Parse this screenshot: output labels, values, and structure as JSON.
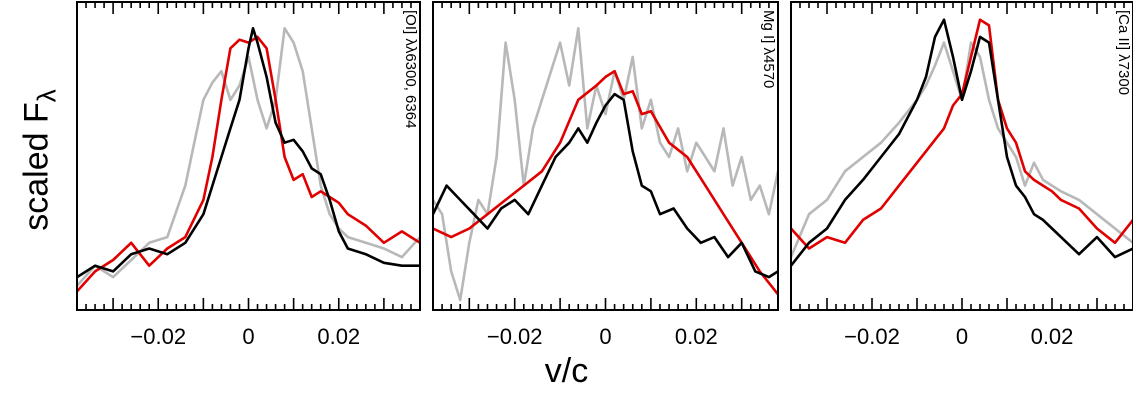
{
  "figure": {
    "ylabel_main": "scaled F",
    "ylabel_sub": "λ",
    "xlabel": "v/c"
  },
  "chart_data": [
    {
      "type": "line",
      "annotation": "[OI] λλ6300, 6364",
      "xlim": [
        -0.038,
        0.038
      ],
      "ylim": [
        0,
        1
      ],
      "xticks": [
        -0.02,
        0,
        0.02
      ],
      "xtick_labels": [
        "−0.02",
        "0",
        "0.02"
      ],
      "grid": false,
      "series": [
        {
          "color": "#000000",
          "x": [
            -0.038,
            -0.034,
            -0.03,
            -0.026,
            -0.022,
            -0.018,
            -0.014,
            -0.01,
            -0.008,
            -0.006,
            -0.004,
            -0.002,
            0.0,
            0.001,
            0.002,
            0.004,
            0.006,
            0.008,
            0.01,
            0.012,
            0.014,
            0.016,
            0.018,
            0.02,
            0.022,
            0.026,
            0.03,
            0.034,
            0.038
          ],
          "y": [
            0.08,
            0.12,
            0.1,
            0.16,
            0.18,
            0.16,
            0.2,
            0.3,
            0.4,
            0.5,
            0.6,
            0.7,
            0.88,
            0.95,
            0.9,
            0.78,
            0.62,
            0.55,
            0.56,
            0.52,
            0.46,
            0.44,
            0.35,
            0.24,
            0.18,
            0.16,
            0.13,
            0.12,
            0.12
          ]
        },
        {
          "color": "#e00000",
          "x": [
            -0.038,
            -0.034,
            -0.03,
            -0.026,
            -0.022,
            -0.018,
            -0.014,
            -0.01,
            -0.008,
            -0.006,
            -0.004,
            -0.002,
            0.0,
            0.002,
            0.004,
            0.006,
            0.008,
            0.01,
            0.012,
            0.014,
            0.016,
            0.018,
            0.02,
            0.022,
            0.026,
            0.03,
            0.034,
            0.038
          ],
          "y": [
            0.03,
            0.1,
            0.14,
            0.2,
            0.12,
            0.18,
            0.22,
            0.35,
            0.5,
            0.7,
            0.88,
            0.91,
            0.9,
            0.92,
            0.88,
            0.7,
            0.5,
            0.42,
            0.44,
            0.36,
            0.38,
            0.36,
            0.34,
            0.3,
            0.26,
            0.2,
            0.24,
            0.2
          ]
        },
        {
          "color": "#b8b8b8",
          "x": [
            -0.038,
            -0.034,
            -0.03,
            -0.026,
            -0.022,
            -0.018,
            -0.014,
            -0.012,
            -0.01,
            -0.008,
            -0.006,
            -0.004,
            -0.002,
            0.0,
            0.002,
            0.004,
            0.006,
            0.008,
            0.01,
            0.012,
            0.014,
            0.016,
            0.018,
            0.02,
            0.022,
            0.026,
            0.03,
            0.034,
            0.038
          ],
          "y": [
            0.05,
            0.12,
            0.08,
            0.14,
            0.2,
            0.22,
            0.4,
            0.55,
            0.7,
            0.76,
            0.8,
            0.7,
            0.75,
            0.85,
            0.7,
            0.6,
            0.7,
            0.95,
            0.9,
            0.8,
            0.6,
            0.4,
            0.3,
            0.25,
            0.22,
            0.2,
            0.18,
            0.15,
            0.22
          ]
        }
      ]
    },
    {
      "type": "line",
      "annotation": "Mg I] λ4570",
      "xlim": [
        -0.038,
        0.038
      ],
      "ylim": [
        0,
        1
      ],
      "xticks": [
        -0.02,
        0,
        0.02
      ],
      "xtick_labels": [
        "−0.02",
        "0",
        "0.02"
      ],
      "grid": false,
      "series": [
        {
          "color": "#000000",
          "x": [
            -0.038,
            -0.035,
            -0.032,
            -0.029,
            -0.026,
            -0.023,
            -0.02,
            -0.017,
            -0.014,
            -0.011,
            -0.008,
            -0.006,
            -0.004,
            -0.002,
            0.0,
            0.002,
            0.004,
            0.006,
            0.008,
            0.01,
            0.012,
            0.015,
            0.018,
            0.021,
            0.024,
            0.027,
            0.03,
            0.033,
            0.036,
            0.038
          ],
          "y": [
            0.3,
            0.4,
            0.35,
            0.3,
            0.25,
            0.32,
            0.35,
            0.3,
            0.4,
            0.5,
            0.55,
            0.6,
            0.55,
            0.62,
            0.68,
            0.72,
            0.7,
            0.52,
            0.4,
            0.38,
            0.3,
            0.32,
            0.25,
            0.2,
            0.22,
            0.15,
            0.2,
            0.1,
            0.08,
            0.1
          ]
        },
        {
          "color": "#e00000",
          "x": [
            -0.038,
            -0.034,
            -0.03,
            -0.026,
            -0.022,
            -0.018,
            -0.014,
            -0.01,
            -0.006,
            -0.002,
            0.0,
            0.002,
            0.004,
            0.006,
            0.008,
            0.01,
            0.014,
            0.018,
            0.022,
            0.026,
            0.03,
            0.034,
            0.038
          ],
          "y": [
            0.25,
            0.22,
            0.25,
            0.3,
            0.35,
            0.4,
            0.45,
            0.55,
            0.7,
            0.75,
            0.78,
            0.8,
            0.72,
            0.73,
            0.65,
            0.66,
            0.55,
            0.5,
            0.4,
            0.3,
            0.2,
            0.1,
            0.02
          ]
        },
        {
          "color": "#b8b8b8",
          "x": [
            -0.038,
            -0.036,
            -0.034,
            -0.032,
            -0.03,
            -0.028,
            -0.026,
            -0.024,
            -0.022,
            -0.02,
            -0.018,
            -0.016,
            -0.014,
            -0.012,
            -0.01,
            -0.008,
            -0.006,
            -0.004,
            -0.002,
            0.0,
            0.002,
            0.004,
            0.006,
            0.008,
            0.01,
            0.012,
            0.014,
            0.016,
            0.018,
            0.02,
            0.022,
            0.024,
            0.026,
            0.028,
            0.03,
            0.032,
            0.034,
            0.036,
            0.038
          ],
          "y": [
            0.35,
            0.3,
            0.1,
            0.0,
            0.2,
            0.35,
            0.3,
            0.5,
            0.9,
            0.7,
            0.4,
            0.6,
            0.7,
            0.8,
            0.9,
            0.75,
            0.95,
            0.6,
            0.75,
            0.65,
            0.8,
            0.7,
            0.85,
            0.6,
            0.7,
            0.55,
            0.5,
            0.6,
            0.45,
            0.55,
            0.5,
            0.45,
            0.6,
            0.4,
            0.5,
            0.35,
            0.4,
            0.3,
            0.45
          ]
        }
      ]
    },
    {
      "type": "line",
      "annotation": "[Ca II] λ7300",
      "xlim": [
        -0.038,
        0.038
      ],
      "ylim": [
        0,
        1
      ],
      "xticks": [
        -0.02,
        0,
        0.02
      ],
      "xtick_labels": [
        "−0.02",
        "0",
        "0.02"
      ],
      "grid": false,
      "series": [
        {
          "color": "#000000",
          "x": [
            -0.038,
            -0.034,
            -0.03,
            -0.026,
            -0.022,
            -0.018,
            -0.014,
            -0.01,
            -0.008,
            -0.006,
            -0.004,
            -0.002,
            0.0,
            0.002,
            0.004,
            0.006,
            0.008,
            0.01,
            0.012,
            0.014,
            0.016,
            0.018,
            0.02,
            0.022,
            0.026,
            0.03,
            0.034,
            0.038
          ],
          "y": [
            0.12,
            0.2,
            0.25,
            0.35,
            0.42,
            0.5,
            0.58,
            0.7,
            0.78,
            0.92,
            0.98,
            0.85,
            0.7,
            0.8,
            0.92,
            0.9,
            0.7,
            0.5,
            0.4,
            0.36,
            0.3,
            0.28,
            0.25,
            0.22,
            0.16,
            0.22,
            0.15,
            0.18
          ]
        },
        {
          "color": "#e00000",
          "x": [
            -0.038,
            -0.034,
            -0.03,
            -0.026,
            -0.022,
            -0.018,
            -0.014,
            -0.01,
            -0.008,
            -0.006,
            -0.004,
            -0.002,
            0.0,
            0.002,
            0.004,
            0.006,
            0.008,
            0.01,
            0.012,
            0.014,
            0.016,
            0.018,
            0.02,
            0.022,
            0.026,
            0.03,
            0.034,
            0.038
          ],
          "y": [
            0.25,
            0.18,
            0.22,
            0.2,
            0.28,
            0.32,
            0.4,
            0.48,
            0.52,
            0.56,
            0.6,
            0.68,
            0.72,
            0.85,
            0.98,
            0.96,
            0.7,
            0.6,
            0.55,
            0.45,
            0.42,
            0.4,
            0.38,
            0.35,
            0.32,
            0.25,
            0.2,
            0.28
          ]
        },
        {
          "color": "#b8b8b8",
          "x": [
            -0.038,
            -0.034,
            -0.03,
            -0.026,
            -0.022,
            -0.018,
            -0.014,
            -0.01,
            -0.008,
            -0.006,
            -0.004,
            -0.002,
            0.0,
            0.002,
            0.004,
            0.006,
            0.008,
            0.01,
            0.012,
            0.014,
            0.016,
            0.018,
            0.02,
            0.022,
            0.026,
            0.03,
            0.034,
            0.038
          ],
          "y": [
            0.15,
            0.3,
            0.35,
            0.45,
            0.5,
            0.55,
            0.62,
            0.7,
            0.75,
            0.82,
            0.9,
            0.8,
            0.7,
            0.9,
            0.85,
            0.7,
            0.6,
            0.55,
            0.5,
            0.4,
            0.48,
            0.42,
            0.4,
            0.38,
            0.35,
            0.3,
            0.25,
            0.2
          ]
        }
      ]
    }
  ]
}
